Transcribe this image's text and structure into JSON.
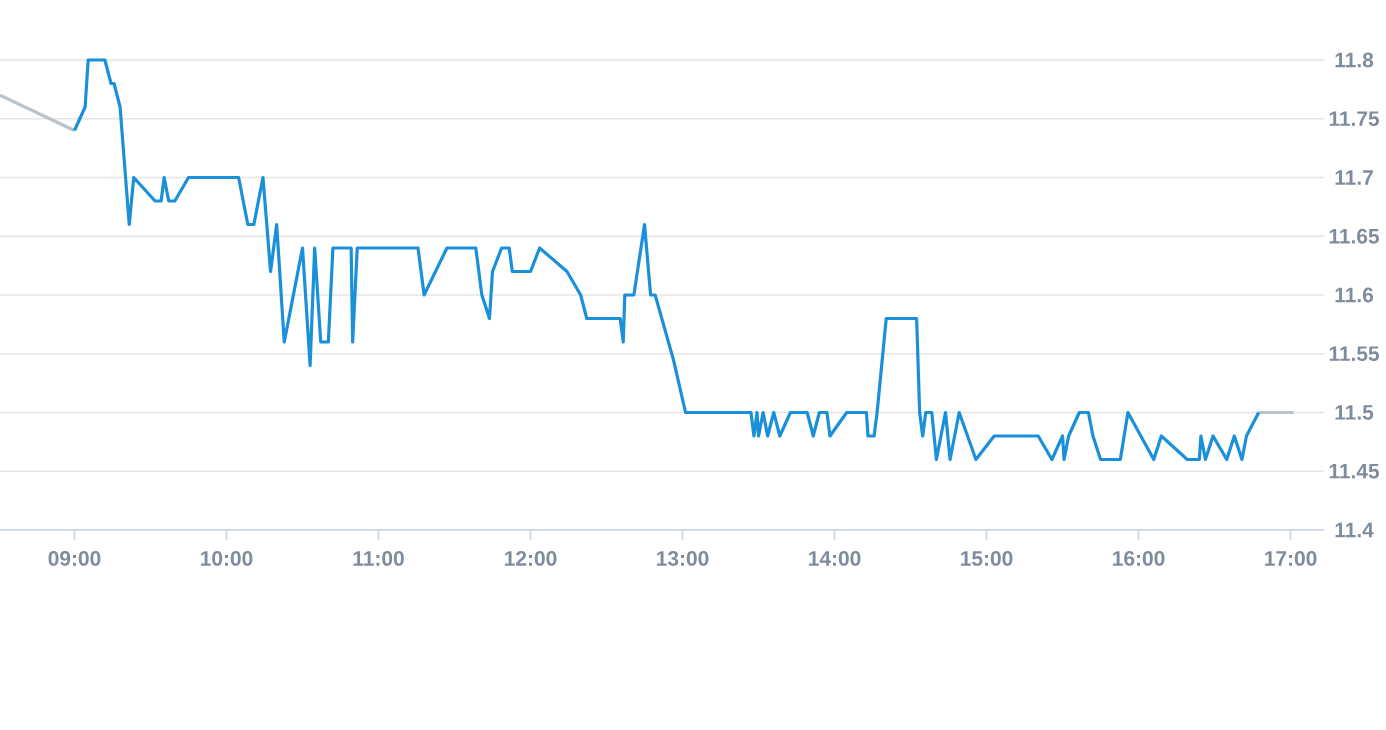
{
  "chart_data": {
    "type": "line",
    "xlim": [
      8.51,
      17.22
    ],
    "xticks": [
      {
        "value": 9,
        "label": "09:00"
      },
      {
        "value": 10,
        "label": "10:00"
      },
      {
        "value": 11,
        "label": "11:00"
      },
      {
        "value": 12,
        "label": "12:00"
      },
      {
        "value": 13,
        "label": "13:00"
      },
      {
        "value": 14,
        "label": "14:00"
      },
      {
        "value": 15,
        "label": "15:00"
      },
      {
        "value": 16,
        "label": "16:00"
      },
      {
        "value": 17,
        "label": "17:00"
      }
    ],
    "ylim": [
      11.4,
      11.8
    ],
    "yticks": [
      11.4,
      11.45,
      11.5,
      11.55,
      11.6,
      11.65,
      11.7,
      11.75,
      11.8
    ],
    "grid": "y",
    "series": [
      {
        "color": "#b8c4cc",
        "x": [
          8.51,
          9.0,
          12.0,
          16.79,
          17.02
        ],
        "values": [
          11.77,
          11.74,
          null,
          11.5,
          11.5
        ]
      },
      {
        "color": "#1a90db",
        "x": [
          9.0,
          9.07,
          9.09,
          9.2,
          9.24,
          9.26,
          9.3,
          9.36,
          9.39,
          9.53,
          9.57,
          9.59,
          9.62,
          9.66,
          9.75,
          10.08,
          10.14,
          10.18,
          10.24,
          10.29,
          10.33,
          10.38,
          10.5,
          10.55,
          10.58,
          10.62,
          10.67,
          10.7,
          10.82,
          10.83,
          10.86,
          11.26,
          11.3,
          11.45,
          11.64,
          11.68,
          11.73,
          11.75,
          11.81,
          11.86,
          11.88,
          12.0,
          12.06,
          12.24,
          12.33,
          12.37,
          12.59,
          12.61,
          12.62,
          12.68,
          12.75,
          12.79,
          12.82,
          12.94,
          13.02,
          13.45,
          13.47,
          13.49,
          13.5,
          13.53,
          13.56,
          13.6,
          13.64,
          13.71,
          13.82,
          13.86,
          13.9,
          13.95,
          13.97,
          14.08,
          14.21,
          14.22,
          14.26,
          14.28,
          14.34,
          14.54,
          14.56,
          14.58,
          14.6,
          14.64,
          14.67,
          14.73,
          14.76,
          14.82,
          14.93,
          15.05,
          15.34,
          15.43,
          15.5,
          15.51,
          15.54,
          15.61,
          15.67,
          15.7,
          15.75,
          15.88,
          15.93,
          16.1,
          16.15,
          16.32,
          16.4,
          16.41,
          16.44,
          16.49,
          16.58,
          16.63,
          16.68,
          16.71,
          16.79
        ],
        "values": [
          11.74,
          11.76,
          11.8,
          11.8,
          11.78,
          11.78,
          11.76,
          11.66,
          11.7,
          11.68,
          11.68,
          11.7,
          11.68,
          11.68,
          11.7,
          11.7,
          11.66,
          11.66,
          11.7,
          11.62,
          11.66,
          11.56,
          11.64,
          11.54,
          11.64,
          11.56,
          11.56,
          11.64,
          11.64,
          11.56,
          11.64,
          11.64,
          11.6,
          11.64,
          11.64,
          11.6,
          11.58,
          11.62,
          11.64,
          11.64,
          11.62,
          11.62,
          11.64,
          11.62,
          11.6,
          11.58,
          11.58,
          11.56,
          11.6,
          11.6,
          11.66,
          11.6,
          11.6,
          11.545,
          11.5,
          11.5,
          11.48,
          11.5,
          11.48,
          11.5,
          11.48,
          11.5,
          11.48,
          11.5,
          11.5,
          11.48,
          11.5,
          11.5,
          11.48,
          11.5,
          11.5,
          11.48,
          11.48,
          11.5,
          11.58,
          11.58,
          11.5,
          11.48,
          11.5,
          11.5,
          11.46,
          11.5,
          11.46,
          11.5,
          11.46,
          11.48,
          11.48,
          11.46,
          11.48,
          11.46,
          11.48,
          11.5,
          11.5,
          11.48,
          11.46,
          11.46,
          11.5,
          11.46,
          11.48,
          11.46,
          11.46,
          11.48,
          11.46,
          11.48,
          11.46,
          11.48,
          11.46,
          11.48,
          11.5
        ]
      }
    ]
  }
}
